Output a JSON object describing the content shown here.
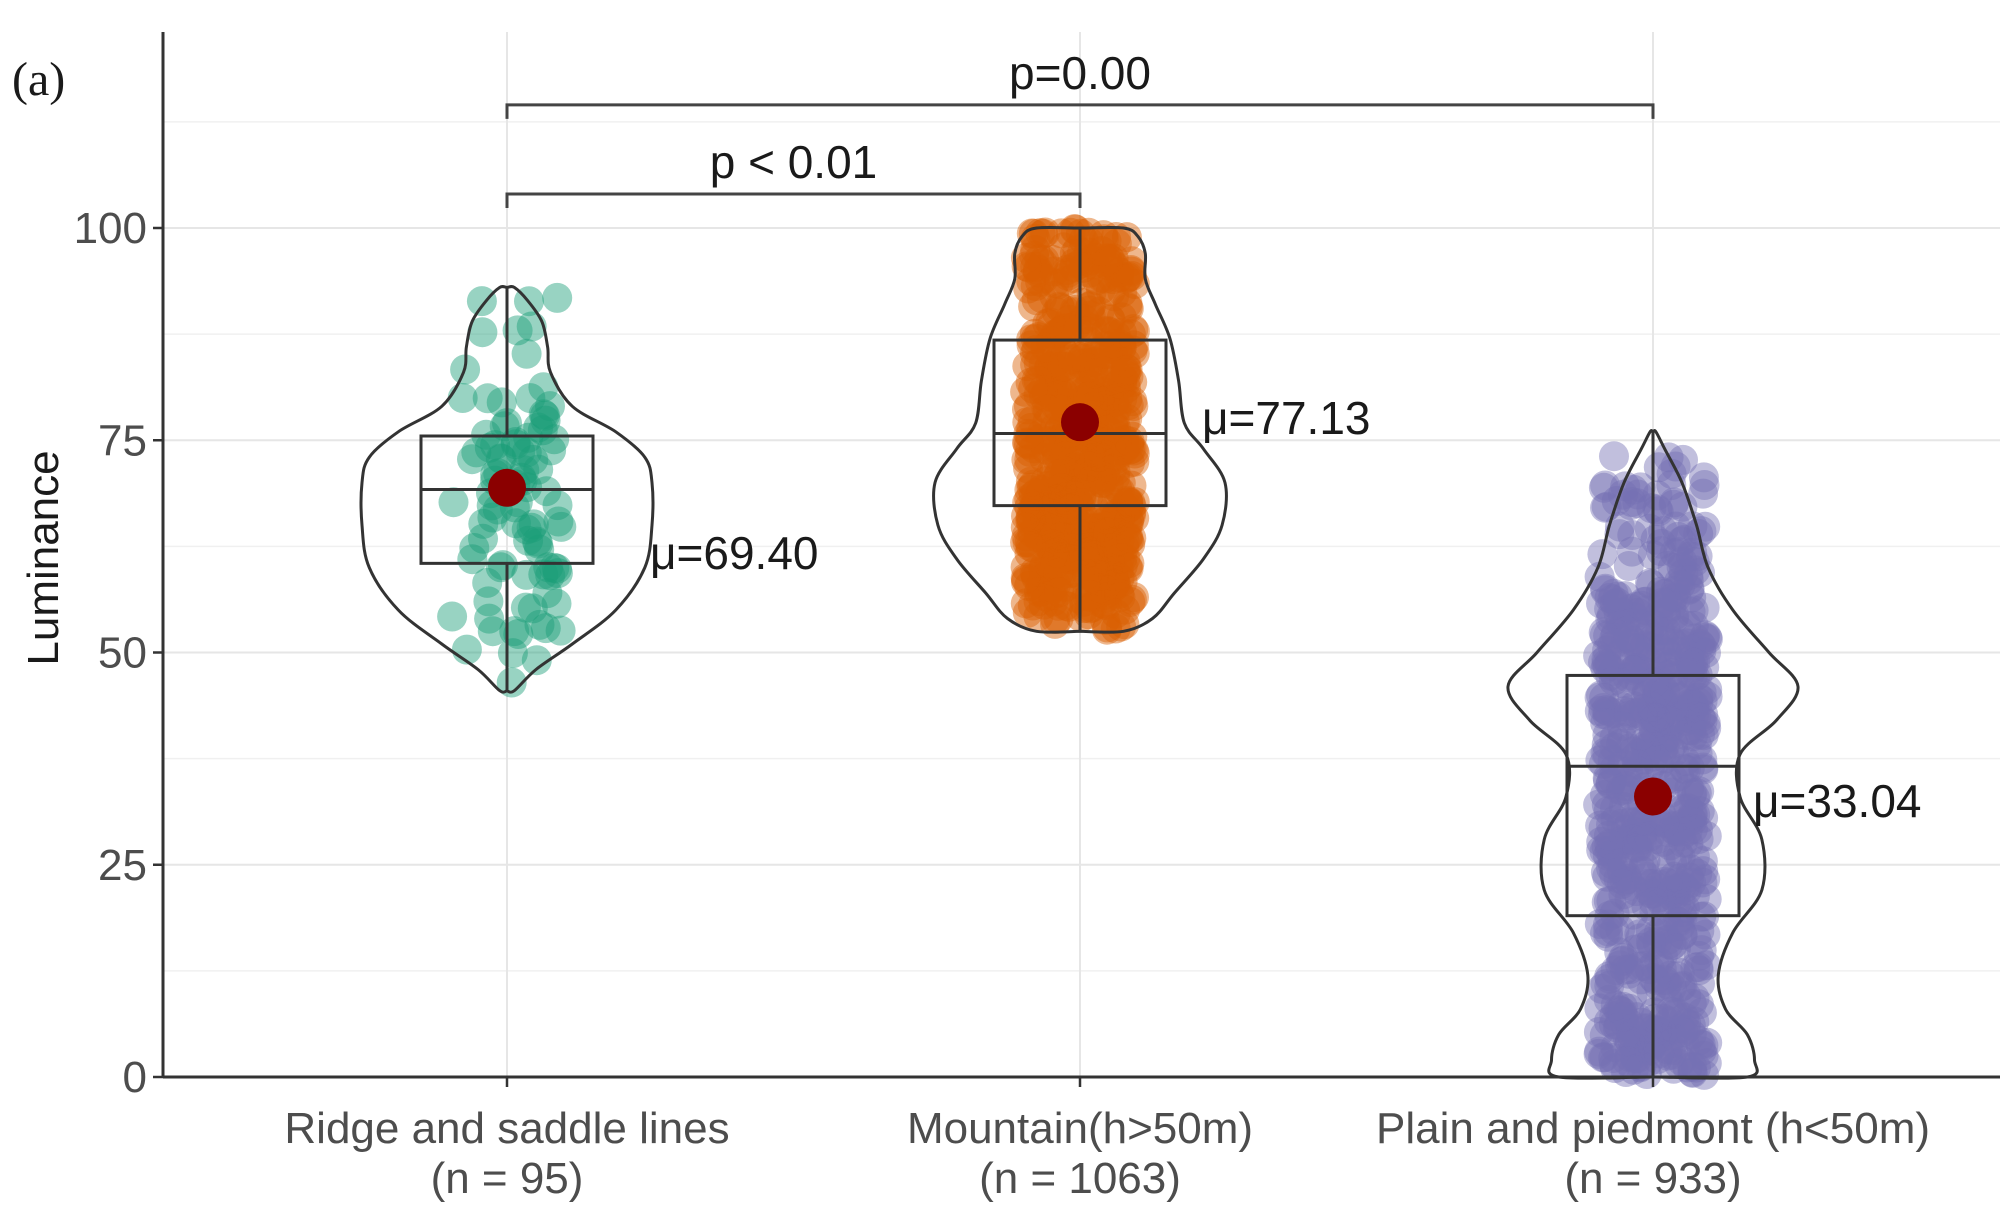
{
  "panel_label": "(a)",
  "chart_data": {
    "type": "violin",
    "ylabel": "Luminance",
    "xlabel": "",
    "ylim": [
      0,
      120
    ],
    "yticks": [
      0,
      25,
      50,
      75,
      100
    ],
    "grid": true,
    "groups": [
      {
        "label": "Ridge and saddle lines",
        "n_label": "(n = 95)",
        "n": 95,
        "color": "#1b9e77",
        "min": 45.5,
        "q1": 60.5,
        "median": 69.2,
        "q3": 75.5,
        "max": 93,
        "mean": 69.4,
        "mean_label": "μ=69.40",
        "density": [
          [
            45.5,
            0.05
          ],
          [
            48,
            0.2
          ],
          [
            51,
            0.45
          ],
          [
            55,
            0.75
          ],
          [
            60,
            0.95
          ],
          [
            65,
            1.0
          ],
          [
            70,
            1.0
          ],
          [
            73,
            0.95
          ],
          [
            76,
            0.75
          ],
          [
            79,
            0.45
          ],
          [
            83,
            0.3
          ],
          [
            86,
            0.28
          ],
          [
            89,
            0.24
          ],
          [
            91.5,
            0.14
          ],
          [
            93,
            0.05
          ]
        ]
      },
      {
        "label": "Mountain(h>50m)",
        "n_label": "(n = 1063)",
        "n": 1063,
        "color": "#d95f02",
        "min": 52.5,
        "q1": 67.3,
        "median": 75.8,
        "q3": 86.8,
        "max": 100,
        "mean": 77.13,
        "mean_label": "μ=77.13",
        "density": [
          [
            52.5,
            0.3
          ],
          [
            54,
            0.5
          ],
          [
            57,
            0.65
          ],
          [
            61,
            0.85
          ],
          [
            65,
            0.98
          ],
          [
            70,
            1.0
          ],
          [
            74,
            0.85
          ],
          [
            77,
            0.72
          ],
          [
            82,
            0.68
          ],
          [
            87,
            0.62
          ],
          [
            91,
            0.52
          ],
          [
            94,
            0.45
          ],
          [
            97,
            0.45
          ],
          [
            99,
            0.4
          ],
          [
            100,
            0.3
          ]
        ]
      },
      {
        "label": "Plain and piedmont (h<50m)",
        "n_label": "(n = 933)",
        "n": 933,
        "color": "#7570b3",
        "min": 0,
        "q1": 19,
        "median": 36.6,
        "q3": 47.3,
        "max": 76,
        "mean": 33.04,
        "mean_label": "μ=33.04",
        "density": [
          [
            0,
            0.65
          ],
          [
            2,
            0.7
          ],
          [
            5,
            0.65
          ],
          [
            8,
            0.5
          ],
          [
            12,
            0.45
          ],
          [
            17,
            0.55
          ],
          [
            22,
            0.75
          ],
          [
            28,
            0.75
          ],
          [
            33,
            0.6
          ],
          [
            38,
            0.6
          ],
          [
            42,
            0.85
          ],
          [
            46,
            1.0
          ],
          [
            50,
            0.8
          ],
          [
            55,
            0.55
          ],
          [
            60,
            0.38
          ],
          [
            65,
            0.3
          ],
          [
            70,
            0.2
          ],
          [
            74,
            0.08
          ],
          [
            76,
            0.02
          ]
        ]
      }
    ],
    "comparisons": [
      {
        "from": 0,
        "to": 1,
        "label": "p < 0.01",
        "y": 104
      },
      {
        "from": 0,
        "to": 2,
        "label": "p=0.00",
        "y": 114.5
      }
    ]
  }
}
